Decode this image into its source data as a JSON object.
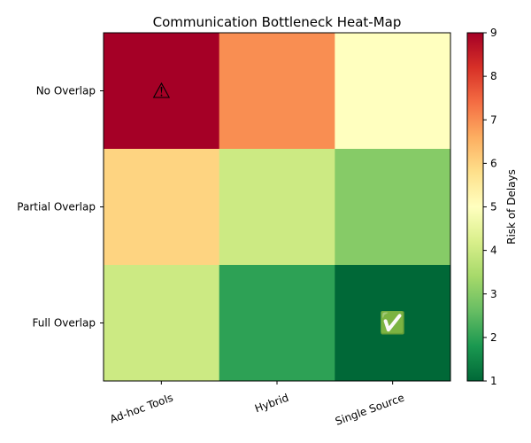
{
  "chart_data": {
    "type": "heatmap",
    "title": "Communication Bottleneck Heat-Map",
    "x_categories": [
      "Ad-hoc Tools",
      "Hybrid",
      "Single Source"
    ],
    "y_categories": [
      "No Overlap",
      "Partial Overlap",
      "Full Overlap"
    ],
    "values": [
      [
        9,
        7,
        5
      ],
      [
        6,
        4,
        3
      ],
      [
        4,
        2,
        1
      ]
    ],
    "colorbar": {
      "label": "Risk of Delays",
      "min": 1,
      "max": 9,
      "ticks": [
        1,
        2,
        3,
        4,
        5,
        6,
        7,
        8,
        9
      ],
      "colormap": "RdYlGn_r"
    },
    "annotations": [
      {
        "row": 0,
        "col": 0,
        "text": "⚠",
        "name": "warning-icon"
      },
      {
        "row": 2,
        "col": 2,
        "text": "✅",
        "name": "check-icon"
      }
    ]
  }
}
